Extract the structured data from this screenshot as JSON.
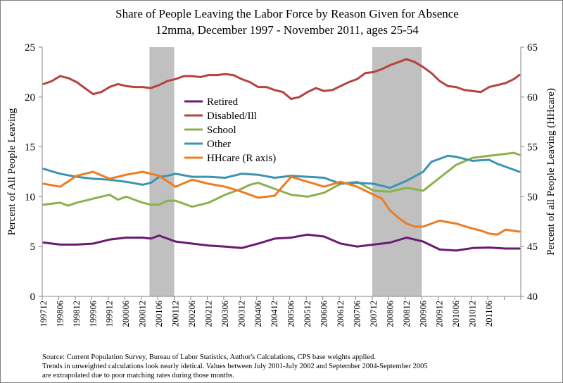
{
  "chart_data": {
    "type": "line",
    "title": "Share of People Leaving the Labor Force by Reason Given for Absence",
    "subtitle": "12mma, December 1997 - November 2011, ages 25-54",
    "ylabel": "Percent of All People Leaving",
    "y2label": "Percent of all People Leaving (HHcare)",
    "ylim": [
      0,
      25
    ],
    "y2lim": [
      40,
      65
    ],
    "yticks": [
      "0",
      "5",
      "10",
      "15",
      "20",
      "25"
    ],
    "y2ticks": [
      "40",
      "45",
      "50",
      "55",
      "60",
      "65"
    ],
    "grid": false,
    "legend": "center-left",
    "x_tick_labels": [
      "199712",
      "199806",
      "199812",
      "199906",
      "199912",
      "200006",
      "200012",
      "200106",
      "200112",
      "200206",
      "200212",
      "200306",
      "200312",
      "200406",
      "200412",
      "200506",
      "200512",
      "200606",
      "200612",
      "200706",
      "200712",
      "200806",
      "200812",
      "200906",
      "200912",
      "201006",
      "201012",
      "201106"
    ],
    "recessions": [
      {
        "start": 39,
        "end": 48
      },
      {
        "start": 120,
        "end": 138
      }
    ],
    "series": [
      {
        "name": "Retired",
        "axis": "left",
        "color": "#6b1a73",
        "points": [
          [
            0,
            5.4
          ],
          [
            6,
            5.2
          ],
          [
            12,
            5.2
          ],
          [
            18,
            5.3
          ],
          [
            24,
            5.7
          ],
          [
            30,
            5.9
          ],
          [
            36,
            5.9
          ],
          [
            39,
            5.8
          ],
          [
            42,
            6.1
          ],
          [
            45,
            5.8
          ],
          [
            48,
            5.5
          ],
          [
            54,
            5.3
          ],
          [
            60,
            5.1
          ],
          [
            66,
            5.0
          ],
          [
            72,
            4.85
          ],
          [
            78,
            5.3
          ],
          [
            84,
            5.8
          ],
          [
            90,
            5.9
          ],
          [
            96,
            6.2
          ],
          [
            102,
            6.0
          ],
          [
            108,
            5.3
          ],
          [
            114,
            5.0
          ],
          [
            120,
            5.2
          ],
          [
            126,
            5.4
          ],
          [
            132,
            5.9
          ],
          [
            138,
            5.5
          ],
          [
            144,
            4.7
          ],
          [
            150,
            4.6
          ],
          [
            156,
            4.85
          ],
          [
            162,
            4.9
          ],
          [
            168,
            4.8
          ],
          [
            173,
            4.8
          ]
        ]
      },
      {
        "name": "Disabled/Ill",
        "axis": "left",
        "color": "#b5423f",
        "points": [
          [
            0,
            21.3
          ],
          [
            3,
            21.6
          ],
          [
            6,
            22.1
          ],
          [
            9,
            21.9
          ],
          [
            12,
            21.5
          ],
          [
            15,
            20.9
          ],
          [
            18,
            20.3
          ],
          [
            21,
            20.5
          ],
          [
            24,
            21.0
          ],
          [
            27,
            21.3
          ],
          [
            30,
            21.1
          ],
          [
            33,
            21.0
          ],
          [
            36,
            21.0
          ],
          [
            39,
            20.9
          ],
          [
            42,
            21.2
          ],
          [
            45,
            21.6
          ],
          [
            48,
            21.8
          ],
          [
            51,
            22.1
          ],
          [
            54,
            22.1
          ],
          [
            57,
            22.0
          ],
          [
            60,
            22.2
          ],
          [
            63,
            22.2
          ],
          [
            66,
            22.3
          ],
          [
            69,
            22.2
          ],
          [
            72,
            21.8
          ],
          [
            75,
            21.5
          ],
          [
            78,
            21.0
          ],
          [
            81,
            21.0
          ],
          [
            84,
            20.7
          ],
          [
            87,
            20.5
          ],
          [
            90,
            19.8
          ],
          [
            93,
            20.0
          ],
          [
            96,
            20.5
          ],
          [
            99,
            20.9
          ],
          [
            102,
            20.6
          ],
          [
            105,
            20.7
          ],
          [
            108,
            21.1
          ],
          [
            111,
            21.5
          ],
          [
            114,
            21.8
          ],
          [
            117,
            22.4
          ],
          [
            120,
            22.5
          ],
          [
            123,
            22.8
          ],
          [
            126,
            23.2
          ],
          [
            129,
            23.5
          ],
          [
            132,
            23.8
          ],
          [
            135,
            23.5
          ],
          [
            138,
            23.0
          ],
          [
            141,
            22.4
          ],
          [
            144,
            21.6
          ],
          [
            147,
            21.1
          ],
          [
            150,
            21.0
          ],
          [
            153,
            20.7
          ],
          [
            156,
            20.6
          ],
          [
            159,
            20.5
          ],
          [
            162,
            21.0
          ],
          [
            165,
            21.2
          ],
          [
            168,
            21.4
          ],
          [
            171,
            21.8
          ],
          [
            173,
            22.2
          ]
        ]
      },
      {
        "name": "School",
        "axis": "left",
        "color": "#8cb04c",
        "points": [
          [
            0,
            9.2
          ],
          [
            6,
            9.4
          ],
          [
            9,
            9.1
          ],
          [
            12,
            9.4
          ],
          [
            18,
            9.8
          ],
          [
            24,
            10.2
          ],
          [
            27,
            9.7
          ],
          [
            30,
            10.0
          ],
          [
            36,
            9.4
          ],
          [
            39,
            9.2
          ],
          [
            42,
            9.2
          ],
          [
            45,
            9.6
          ],
          [
            48,
            9.6
          ],
          [
            54,
            9.0
          ],
          [
            60,
            9.4
          ],
          [
            66,
            10.2
          ],
          [
            72,
            10.8
          ],
          [
            75,
            11.2
          ],
          [
            78,
            11.4
          ],
          [
            84,
            10.8
          ],
          [
            90,
            10.2
          ],
          [
            96,
            10.0
          ],
          [
            102,
            10.4
          ],
          [
            108,
            11.3
          ],
          [
            114,
            11.5
          ],
          [
            120,
            10.6
          ],
          [
            126,
            10.5
          ],
          [
            132,
            10.9
          ],
          [
            138,
            10.6
          ],
          [
            144,
            11.9
          ],
          [
            150,
            13.2
          ],
          [
            156,
            13.9
          ],
          [
            162,
            14.1
          ],
          [
            168,
            14.3
          ],
          [
            171,
            14.4
          ],
          [
            173,
            14.2
          ]
        ]
      },
      {
        "name": "Other",
        "axis": "left",
        "color": "#3d93b2",
        "points": [
          [
            0,
            12.8
          ],
          [
            6,
            12.3
          ],
          [
            12,
            12.0
          ],
          [
            18,
            11.8
          ],
          [
            24,
            11.7
          ],
          [
            30,
            11.5
          ],
          [
            36,
            11.2
          ],
          [
            39,
            11.4
          ],
          [
            42,
            12.0
          ],
          [
            45,
            12.1
          ],
          [
            48,
            12.3
          ],
          [
            54,
            12.0
          ],
          [
            60,
            12.0
          ],
          [
            66,
            11.9
          ],
          [
            72,
            12.3
          ],
          [
            78,
            12.2
          ],
          [
            84,
            11.9
          ],
          [
            90,
            12.1
          ],
          [
            96,
            12.0
          ],
          [
            102,
            11.9
          ],
          [
            108,
            11.3
          ],
          [
            114,
            11.4
          ],
          [
            120,
            11.3
          ],
          [
            126,
            10.9
          ],
          [
            132,
            11.6
          ],
          [
            138,
            12.5
          ],
          [
            141,
            13.5
          ],
          [
            144,
            13.8
          ],
          [
            147,
            14.1
          ],
          [
            150,
            14.0
          ],
          [
            156,
            13.6
          ],
          [
            162,
            13.7
          ],
          [
            165,
            13.3
          ],
          [
            168,
            13.0
          ],
          [
            173,
            12.5
          ]
        ]
      },
      {
        "name": "HHcare (R axis)",
        "axis": "right",
        "color": "#f07b20",
        "points": [
          [
            0,
            51.3
          ],
          [
            6,
            51.0
          ],
          [
            12,
            52.1
          ],
          [
            18,
            52.5
          ],
          [
            24,
            51.8
          ],
          [
            30,
            52.2
          ],
          [
            36,
            52.5
          ],
          [
            42,
            52.1
          ],
          [
            48,
            51.0
          ],
          [
            54,
            51.7
          ],
          [
            60,
            51.3
          ],
          [
            66,
            51.0
          ],
          [
            72,
            50.5
          ],
          [
            78,
            49.9
          ],
          [
            84,
            50.1
          ],
          [
            90,
            52.0
          ],
          [
            96,
            51.5
          ],
          [
            102,
            51.0
          ],
          [
            108,
            51.5
          ],
          [
            114,
            51.0
          ],
          [
            120,
            50.2
          ],
          [
            123,
            49.8
          ],
          [
            126,
            48.6
          ],
          [
            129,
            47.9
          ],
          [
            132,
            47.3
          ],
          [
            135,
            47.0
          ],
          [
            138,
            47.0
          ],
          [
            144,
            47.6
          ],
          [
            150,
            47.3
          ],
          [
            156,
            46.8
          ],
          [
            159,
            46.6
          ],
          [
            162,
            46.3
          ],
          [
            165,
            46.2
          ],
          [
            168,
            46.7
          ],
          [
            173,
            46.5
          ]
        ]
      }
    ],
    "source_note": [
      "Source: Current Population Survey, Bureau of Labor Statistics, Author's Calculations, CPS base weights applied.",
      "Trends in unweighted calculations look nearly idetical.  Values between July 2001-July 2002 and September 2004-September 2005",
      "are extrapolated due to poor matching rates during those months."
    ]
  }
}
